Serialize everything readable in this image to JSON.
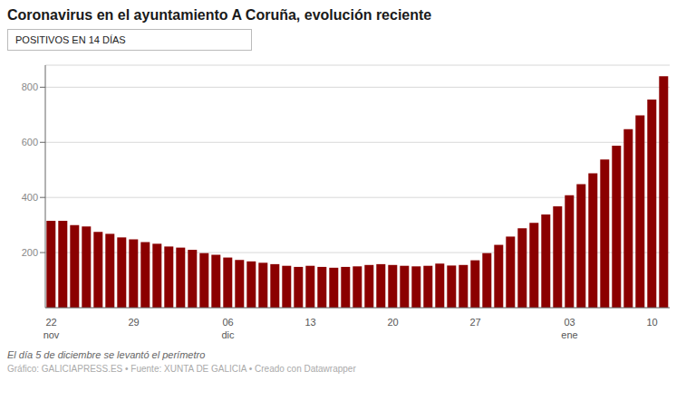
{
  "chart_data": {
    "type": "bar",
    "title": "Coronavirus en el ayuntamiento A Coruña, evolución reciente",
    "subtitle": "POSITIVOS EN 14 DÍAS",
    "annotations": [
      "El día 5 de diciembre se levantó el perímetro",
      "Gráfico: GALICIAPRESS.ES  •  Fuente: XUNTA DE GALICIA  •  Creado con Datawrapper"
    ],
    "categories": [
      "22\nnov",
      null,
      null,
      null,
      null,
      null,
      null,
      "29",
      null,
      null,
      null,
      null,
      null,
      null,
      null,
      "06\ndic",
      null,
      null,
      null,
      null,
      null,
      null,
      "13",
      null,
      null,
      null,
      null,
      null,
      null,
      "20",
      null,
      null,
      null,
      null,
      null,
      null,
      "27",
      null,
      null,
      null,
      null,
      null,
      null,
      null,
      "03\nene",
      null,
      null,
      null,
      null,
      null,
      null,
      "10",
      null
    ],
    "values": [
      315,
      315,
      300,
      295,
      275,
      268,
      255,
      248,
      238,
      232,
      222,
      218,
      210,
      198,
      192,
      182,
      173,
      168,
      163,
      158,
      152,
      148,
      152,
      148,
      145,
      148,
      150,
      155,
      158,
      155,
      152,
      150,
      152,
      160,
      153,
      155,
      172,
      198,
      228,
      258,
      288,
      308,
      338,
      368,
      408,
      448,
      488,
      538,
      588,
      648,
      698,
      755,
      840
    ],
    "color": "#8B0000",
    "ylim": [
      0,
      880
    ],
    "yticks": [
      200,
      400,
      600,
      800
    ],
    "grid": true
  }
}
